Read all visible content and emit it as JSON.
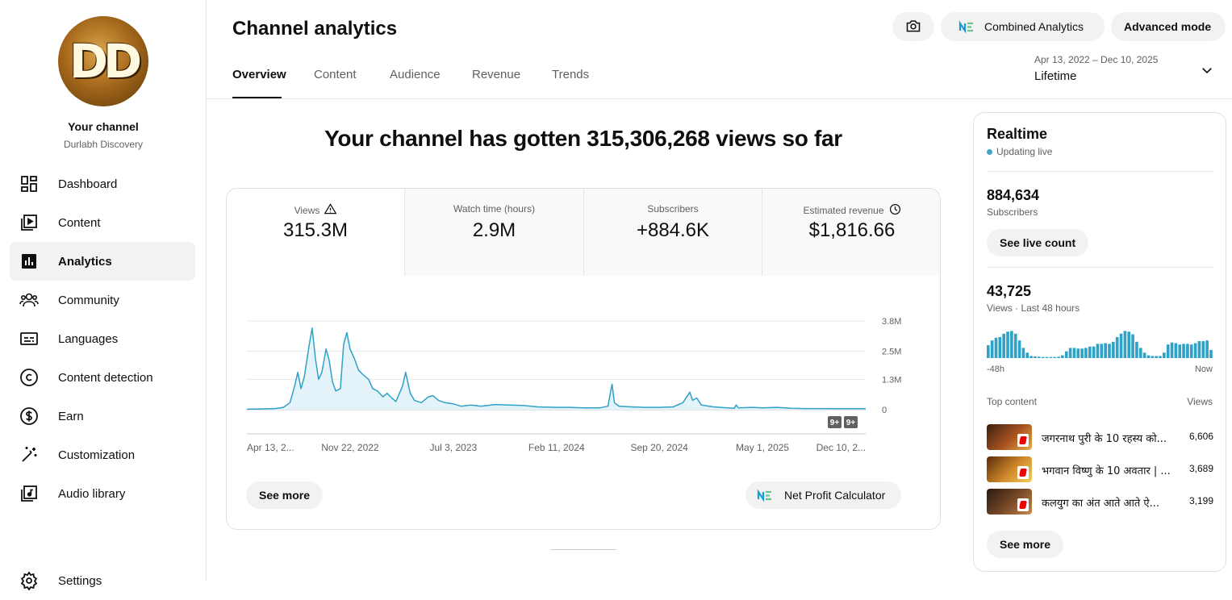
{
  "sidebar": {
    "avatar_text": "DD",
    "your_channel": "Your channel",
    "channel_name": "Durlabh Discovery",
    "items": [
      {
        "label": "Dashboard",
        "icon": "dashboard-icon"
      },
      {
        "label": "Content",
        "icon": "content-icon"
      },
      {
        "label": "Analytics",
        "icon": "analytics-icon",
        "active": true
      },
      {
        "label": "Community",
        "icon": "community-icon"
      },
      {
        "label": "Languages",
        "icon": "languages-icon"
      },
      {
        "label": "Content detection",
        "icon": "copyright-icon"
      },
      {
        "label": "Earn",
        "icon": "dollar-icon"
      },
      {
        "label": "Customization",
        "icon": "magic-wand-icon"
      },
      {
        "label": "Audio library",
        "icon": "audio-library-icon"
      },
      {
        "label": "Settings",
        "icon": "gear-icon"
      }
    ]
  },
  "header": {
    "title": "Channel analytics",
    "tabs": [
      "Overview",
      "Content",
      "Audience",
      "Revenue",
      "Trends"
    ],
    "active_tab": "Overview",
    "combined_label": "Combined Analytics",
    "advanced_label": "Advanced mode",
    "date_range": "Apr 13, 2022 – Dec 10, 2025",
    "date_label": "Lifetime"
  },
  "main": {
    "hero": "Your channel has gotten 315,306,268 views so far",
    "metrics": [
      {
        "label": "Views",
        "value": "315.3M"
      },
      {
        "label": "Watch time (hours)",
        "value": "2.9M"
      },
      {
        "label": "Subscribers",
        "value": "+884.6K"
      },
      {
        "label": "Estimated revenue",
        "value": "$1,816.66"
      }
    ],
    "see_more": "See more",
    "net_profit": "Net Profit Calculator",
    "badges": [
      "9+",
      "9+"
    ]
  },
  "chart_data": {
    "type": "area",
    "title": "",
    "xlabel": "",
    "ylabel": "",
    "y_tick_labels": [
      "0",
      "1.3M",
      "2.5M",
      "3.8M"
    ],
    "y_ticks": [
      0,
      1.3,
      2.5,
      3.8
    ],
    "ylim": [
      0,
      3.8
    ],
    "x_range": [
      "2022-04-13",
      "2025-12-10"
    ],
    "x_tick_labels": [
      "Apr 13, 2...",
      "Nov 22, 2022",
      "Jul 3, 2023",
      "Feb 11, 2024",
      "Sep 20, 2024",
      "May 1, 2025",
      "Dec 10, 2..."
    ],
    "x_ticks": [
      "2022-04-13",
      "2022-11-22",
      "2023-07-03",
      "2024-02-11",
      "2024-09-20",
      "2025-05-01",
      "2025-12-10"
    ],
    "grid": true,
    "series": [
      {
        "values": [
          [
            "2022-04-13",
            0.02
          ],
          [
            "2022-05-13",
            0.03
          ],
          [
            "2022-06-13",
            0.05
          ],
          [
            "2022-07-01",
            0.1
          ],
          [
            "2022-07-15",
            0.3
          ],
          [
            "2022-07-25",
            1.0
          ],
          [
            "2022-08-01",
            1.6
          ],
          [
            "2022-08-08",
            0.9
          ],
          [
            "2022-08-15",
            1.4
          ],
          [
            "2022-08-25",
            2.7
          ],
          [
            "2022-09-01",
            3.5
          ],
          [
            "2022-09-08",
            2.2
          ],
          [
            "2022-09-15",
            1.3
          ],
          [
            "2022-09-22",
            1.6
          ],
          [
            "2022-10-01",
            2.6
          ],
          [
            "2022-10-08",
            2.1
          ],
          [
            "2022-10-15",
            1.2
          ],
          [
            "2022-10-22",
            0.8
          ],
          [
            "2022-11-01",
            0.9
          ],
          [
            "2022-11-08",
            2.8
          ],
          [
            "2022-11-15",
            3.3
          ],
          [
            "2022-11-22",
            2.6
          ],
          [
            "2022-12-01",
            2.2
          ],
          [
            "2022-12-10",
            1.7
          ],
          [
            "2022-12-20",
            1.5
          ],
          [
            "2023-01-01",
            1.3
          ],
          [
            "2023-01-10",
            0.9
          ],
          [
            "2023-01-20",
            0.8
          ],
          [
            "2023-02-01",
            0.55
          ],
          [
            "2023-02-10",
            0.7
          ],
          [
            "2023-02-20",
            0.5
          ],
          [
            "2023-03-01",
            0.35
          ],
          [
            "2023-03-15",
            1.0
          ],
          [
            "2023-03-22",
            1.6
          ],
          [
            "2023-04-01",
            0.7
          ],
          [
            "2023-04-10",
            0.4
          ],
          [
            "2023-04-25",
            0.3
          ],
          [
            "2023-05-10",
            0.55
          ],
          [
            "2023-05-20",
            0.6
          ],
          [
            "2023-06-01",
            0.4
          ],
          [
            "2023-06-15",
            0.3
          ],
          [
            "2023-07-03",
            0.25
          ],
          [
            "2023-07-20",
            0.15
          ],
          [
            "2023-08-10",
            0.2
          ],
          [
            "2023-09-01",
            0.15
          ],
          [
            "2023-10-01",
            0.22
          ],
          [
            "2023-11-01",
            0.2
          ],
          [
            "2023-12-01",
            0.18
          ],
          [
            "2024-01-01",
            0.12
          ],
          [
            "2024-02-11",
            0.1
          ],
          [
            "2024-03-10",
            0.1
          ],
          [
            "2024-04-10",
            0.08
          ],
          [
            "2024-05-15",
            0.08
          ],
          [
            "2024-06-01",
            0.15
          ],
          [
            "2024-06-10",
            1.1
          ],
          [
            "2024-06-15",
            0.3
          ],
          [
            "2024-06-25",
            0.15
          ],
          [
            "2024-07-20",
            0.12
          ],
          [
            "2024-08-20",
            0.1
          ],
          [
            "2024-09-20",
            0.1
          ],
          [
            "2024-10-20",
            0.12
          ],
          [
            "2024-11-10",
            0.3
          ],
          [
            "2024-11-25",
            0.75
          ],
          [
            "2024-12-01",
            0.4
          ],
          [
            "2024-12-10",
            0.5
          ],
          [
            "2024-12-20",
            0.2
          ],
          [
            "2025-01-15",
            0.12
          ],
          [
            "2025-02-15",
            0.08
          ],
          [
            "2025-03-01",
            0.06
          ],
          [
            "2025-03-05",
            0.2
          ],
          [
            "2025-03-10",
            0.08
          ],
          [
            "2025-04-10",
            0.1
          ],
          [
            "2025-05-01",
            0.08
          ],
          [
            "2025-06-01",
            0.1
          ],
          [
            "2025-07-01",
            0.06
          ],
          [
            "2025-08-01",
            0.05
          ],
          [
            "2025-09-01",
            0.05
          ],
          [
            "2025-10-01",
            0.04
          ],
          [
            "2025-11-01",
            0.04
          ],
          [
            "2025-12-10",
            0.04
          ]
        ]
      }
    ]
  },
  "realtime": {
    "title": "Realtime",
    "status": "Updating live",
    "subscribers_value": "884,634",
    "subscribers_label": "Subscribers",
    "live_btn": "See live count",
    "views_value": "43,725",
    "views_label": "Views · Last 48 hours",
    "axis_left": "-48h",
    "axis_right": "Now",
    "bars": [
      0.38,
      0.52,
      0.6,
      0.62,
      0.72,
      0.78,
      0.8,
      0.72,
      0.52,
      0.3,
      0.16,
      0.06,
      0.05,
      0.04,
      0.03,
      0.03,
      0.03,
      0.03,
      0.04,
      0.08,
      0.2,
      0.3,
      0.3,
      0.28,
      0.28,
      0.3,
      0.34,
      0.34,
      0.42,
      0.42,
      0.44,
      0.42,
      0.48,
      0.62,
      0.72,
      0.8,
      0.78,
      0.7,
      0.48,
      0.3,
      0.16,
      0.08,
      0.06,
      0.06,
      0.06,
      0.16,
      0.4,
      0.46,
      0.44,
      0.4,
      0.42,
      0.42,
      0.4,
      0.44,
      0.5,
      0.5,
      0.52,
      0.24
    ],
    "top_content_label": "Top content",
    "views_col": "Views",
    "top": [
      {
        "title": "जगरनाथ पुरी के 10 रहस्य को...",
        "views": "6,606"
      },
      {
        "title": "भगवान विष्णु के 10 अवतार | ...",
        "views": "3,689"
      },
      {
        "title": "कलयुग का अंत आते आते ऐ...",
        "views": "3,199"
      }
    ],
    "see_more": "See more"
  }
}
